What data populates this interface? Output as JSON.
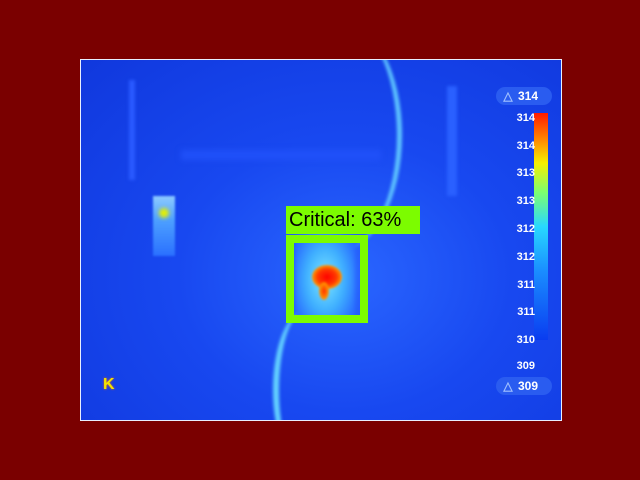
{
  "image": {
    "description_label": "thermal camera view",
    "colormap": "jet",
    "background_color": "#7a0000"
  },
  "scale": {
    "max_badge": "314",
    "min_badge": "309",
    "ticks": [
      "314",
      "314",
      "313",
      "313",
      "312",
      "312",
      "311",
      "311",
      "310",
      "309"
    ],
    "badge_icon": "thermometer-icon"
  },
  "brand": {
    "mark": "K"
  },
  "detection": {
    "label": "Critical: 63%",
    "box_color": "#7cfc00"
  }
}
